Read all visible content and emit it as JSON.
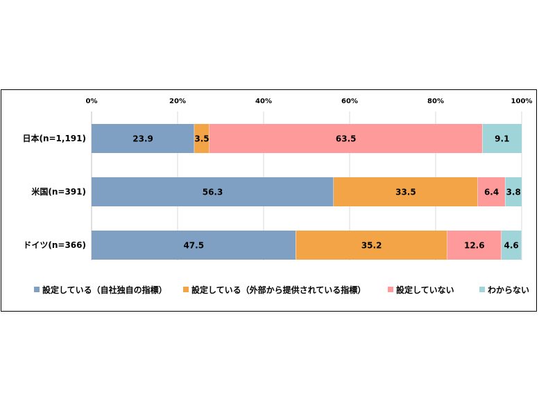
{
  "chart_data": {
    "type": "bar",
    "orientation": "horizontal",
    "stacked": true,
    "title": "",
    "xlabel": "",
    "ylabel": "",
    "xlim": [
      0,
      100
    ],
    "x_ticks": [
      "0%",
      "20%",
      "40%",
      "60%",
      "80%",
      "100%"
    ],
    "x_tick_values": [
      0,
      20,
      40,
      60,
      80,
      100
    ],
    "x_axis_position": "top",
    "grid": true,
    "legend_position": "bottom",
    "categories": [
      "日本(n=1,191)",
      "米国(n=391)",
      "ドイツ(n=366)"
    ],
    "series": [
      {
        "name": "設定している（自社独自の指標）",
        "color": "#7f9fc3",
        "values": [
          23.9,
          56.3,
          47.5
        ],
        "labels": [
          "23.9",
          "56.3",
          "47.5"
        ]
      },
      {
        "name": "設定している（外部から提供されている指標）",
        "color": "#f2a446",
        "values": [
          3.5,
          33.5,
          35.2
        ],
        "labels": [
          "3.5",
          "33.5",
          "35.2"
        ]
      },
      {
        "name": "設定していない",
        "color": "#ff9a9a",
        "values": [
          63.5,
          6.4,
          12.6
        ],
        "labels": [
          "63.5",
          "6.4",
          "12.6"
        ]
      },
      {
        "name": "わからない",
        "color": "#9fd4d8",
        "values": [
          9.1,
          3.8,
          4.6
        ],
        "labels": [
          "9.1",
          "3.8",
          "4.6"
        ]
      }
    ]
  }
}
